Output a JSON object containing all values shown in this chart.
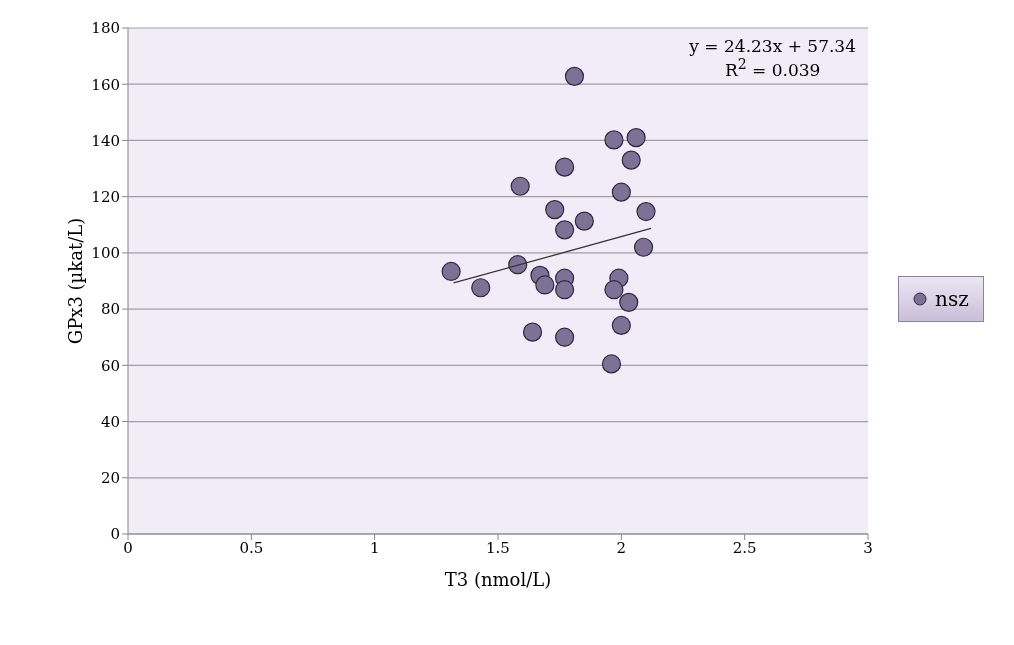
{
  "chart_data": {
    "type": "scatter",
    "xlabel": "T3 (nmol/L)",
    "ylabel": "GPx3 (µkat/L)",
    "xlim": [
      0,
      3
    ],
    "xticks": [
      0,
      0.5,
      1,
      1.5,
      2,
      2.5,
      3
    ],
    "ylim": [
      0,
      180
    ],
    "yticks": [
      0,
      20,
      40,
      60,
      80,
      100,
      120,
      140,
      160,
      180
    ],
    "grid": "y",
    "legend": "right",
    "marker": "circle",
    "annotations": [
      "y = 24.23x + 57.34",
      "R$^{2}$ = 0.039"
    ],
    "series": [
      {
        "name": "nsz",
        "color": "#7d7296",
        "x": [
          1.81,
          1.97,
          2.06,
          2.04,
          1.77,
          1.59,
          2.0,
          1.73,
          2.1,
          1.85,
          1.77,
          2.09,
          1.31,
          1.58,
          1.67,
          1.73,
          1.77,
          1.99,
          1.69,
          1.43,
          1.77,
          1.97,
          2.03,
          1.64,
          1.77,
          2.0,
          1.96
        ],
        "values": [
          162.8,
          140.2,
          141,
          133,
          130.5,
          123.7,
          121.6,
          115.4,
          114.7,
          111.3,
          108.2,
          102,
          93.4,
          95.8,
          92,
          null,
          91,
          91,
          88.6,
          87.6,
          86.9,
          86.9,
          82.4,
          71.8,
          70,
          74.2,
          60.5
        ]
      },
      {
        "type": "line",
        "color": "#333333",
        "marker": "none",
        "line_style": "solid",
        "x": [
          1.32,
          2.12
        ],
        "values": [
          89.3,
          108.7
        ]
      }
    ]
  }
}
